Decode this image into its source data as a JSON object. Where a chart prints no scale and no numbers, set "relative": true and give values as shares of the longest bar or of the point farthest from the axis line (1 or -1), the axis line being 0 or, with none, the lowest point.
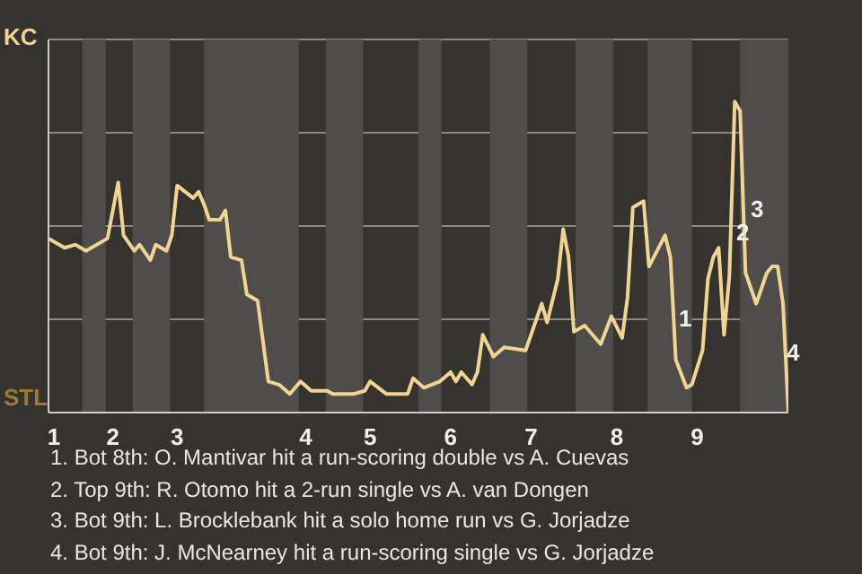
{
  "chart_data": {
    "type": "line",
    "relative": true,
    "grid": "y",
    "marker": "none",
    "line_style": "solid",
    "categories": [
      null,
      "1",
      null,
      null,
      null,
      null,
      null,
      null,
      null,
      null,
      null,
      null,
      "2",
      null,
      null,
      null,
      null,
      null,
      null,
      null,
      null,
      null,
      null,
      null,
      "3",
      null,
      null,
      null,
      null,
      null,
      null,
      null,
      null,
      null,
      null,
      null,
      null,
      null,
      null,
      null,
      null,
      null,
      null,
      null,
      null,
      null,
      null,
      null,
      "4",
      null,
      null,
      null,
      null,
      null,
      null,
      null,
      null,
      null,
      null,
      null,
      "5",
      null,
      null,
      null,
      null,
      null,
      null,
      null,
      null,
      null,
      null,
      null,
      null,
      null,
      null,
      "6",
      null,
      null,
      null,
      null,
      null,
      null,
      null,
      null,
      null,
      null,
      null,
      null,
      null,
      null,
      "7",
      null,
      null,
      null,
      null,
      null,
      null,
      null,
      null,
      null,
      null,
      null,
      null,
      null,
      null,
      null,
      "8",
      null,
      null,
      null,
      null,
      null,
      null,
      null,
      null,
      null,
      null,
      null,
      null,
      null,
      null,
      "9",
      null,
      null,
      null,
      null,
      null,
      null,
      null,
      null,
      null,
      null,
      null,
      null,
      null,
      null,
      null,
      null,
      null
    ],
    "series": [
      {
        "color": "#f2d491",
        "values": [
          0.56,
          null,
          null,
          0.53,
          null,
          0.54,
          null,
          0.52,
          null,
          null,
          null,
          0.56,
          null,
          0.74,
          0.57,
          null,
          0.52,
          0.54,
          null,
          0.49,
          0.54,
          null,
          0.52,
          0.57,
          0.73,
          null,
          null,
          0.69,
          0.71,
          0.67,
          0.62,
          null,
          0.62,
          0.65,
          0.5,
          null,
          0.49,
          0.38,
          null,
          0.36,
          null,
          0.1,
          null,
          0.09,
          null,
          0.06,
          null,
          0.1,
          null,
          0.07,
          null,
          null,
          0.07,
          0.06,
          null,
          null,
          null,
          0.06,
          null,
          0.07,
          0.1,
          null,
          null,
          0.06,
          null,
          null,
          null,
          0.06,
          0.11,
          null,
          0.08,
          null,
          null,
          0.1,
          null,
          0.13,
          0.1,
          0.13,
          null,
          0.09,
          0.13,
          0.25,
          null,
          0.18,
          null,
          0.21,
          null,
          null,
          null,
          0.2,
          null,
          null,
          0.35,
          0.29,
          null,
          0.43,
          0.59,
          0.5,
          0.26,
          null,
          0.28,
          null,
          null,
          0.22,
          null,
          0.31,
          null,
          0.24,
          0.37,
          0.66,
          null,
          0.68,
          0.47,
          null,
          null,
          0.57,
          0.5,
          0.17,
          null,
          0.08,
          0.09,
          null,
          0.2,
          0.43,
          0.5,
          0.53,
          0.25,
          0.44,
          1,
          0.97,
          0.45,
          null,
          0.35,
          null,
          0.45,
          0.47,
          0.47,
          0.35,
          0
        ]
      }
    ],
    "annotations": [
      "KC",
      "STL",
      "1",
      "2",
      "3",
      "4",
      "1. Bot 8th: O. Mantivar hit a run-scoring double vs A. Cuevas",
      "2. Top 9th: R. Otomo hit a 2-run single vs A. van Dongen",
      "3. Bot 9th: L. Brocklebank hit a solo home run vs G. Jorjadze",
      "4. Bot 9th: J. McNearney hit a run-scoring single vs G. Jorjadze"
    ]
  }
}
